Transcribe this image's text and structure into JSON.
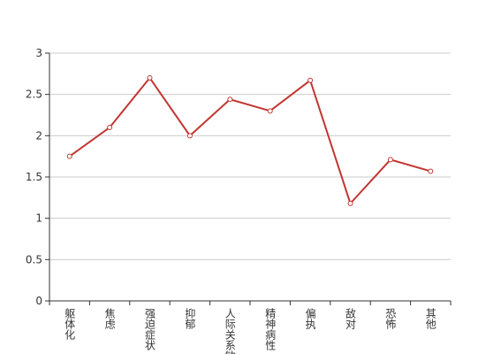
{
  "chart_data": {
    "type": "line",
    "categories": [
      "躯体化",
      "焦虑",
      "强迫症状",
      "抑郁",
      "人际关系敏感",
      "精神病性",
      "偏执",
      "敌对",
      "恐怖",
      "其他"
    ],
    "series": [
      {
        "color": "#c23531",
        "values": [
          1.75,
          2.1,
          2.7,
          2.0,
          2.44,
          2.3,
          2.67,
          1.18,
          1.71,
          1.57
        ]
      }
    ],
    "ylim": [
      0,
      3
    ],
    "yticks": [
      0,
      0.5,
      1,
      1.5,
      2,
      2.5,
      3
    ],
    "grid": true
  }
}
